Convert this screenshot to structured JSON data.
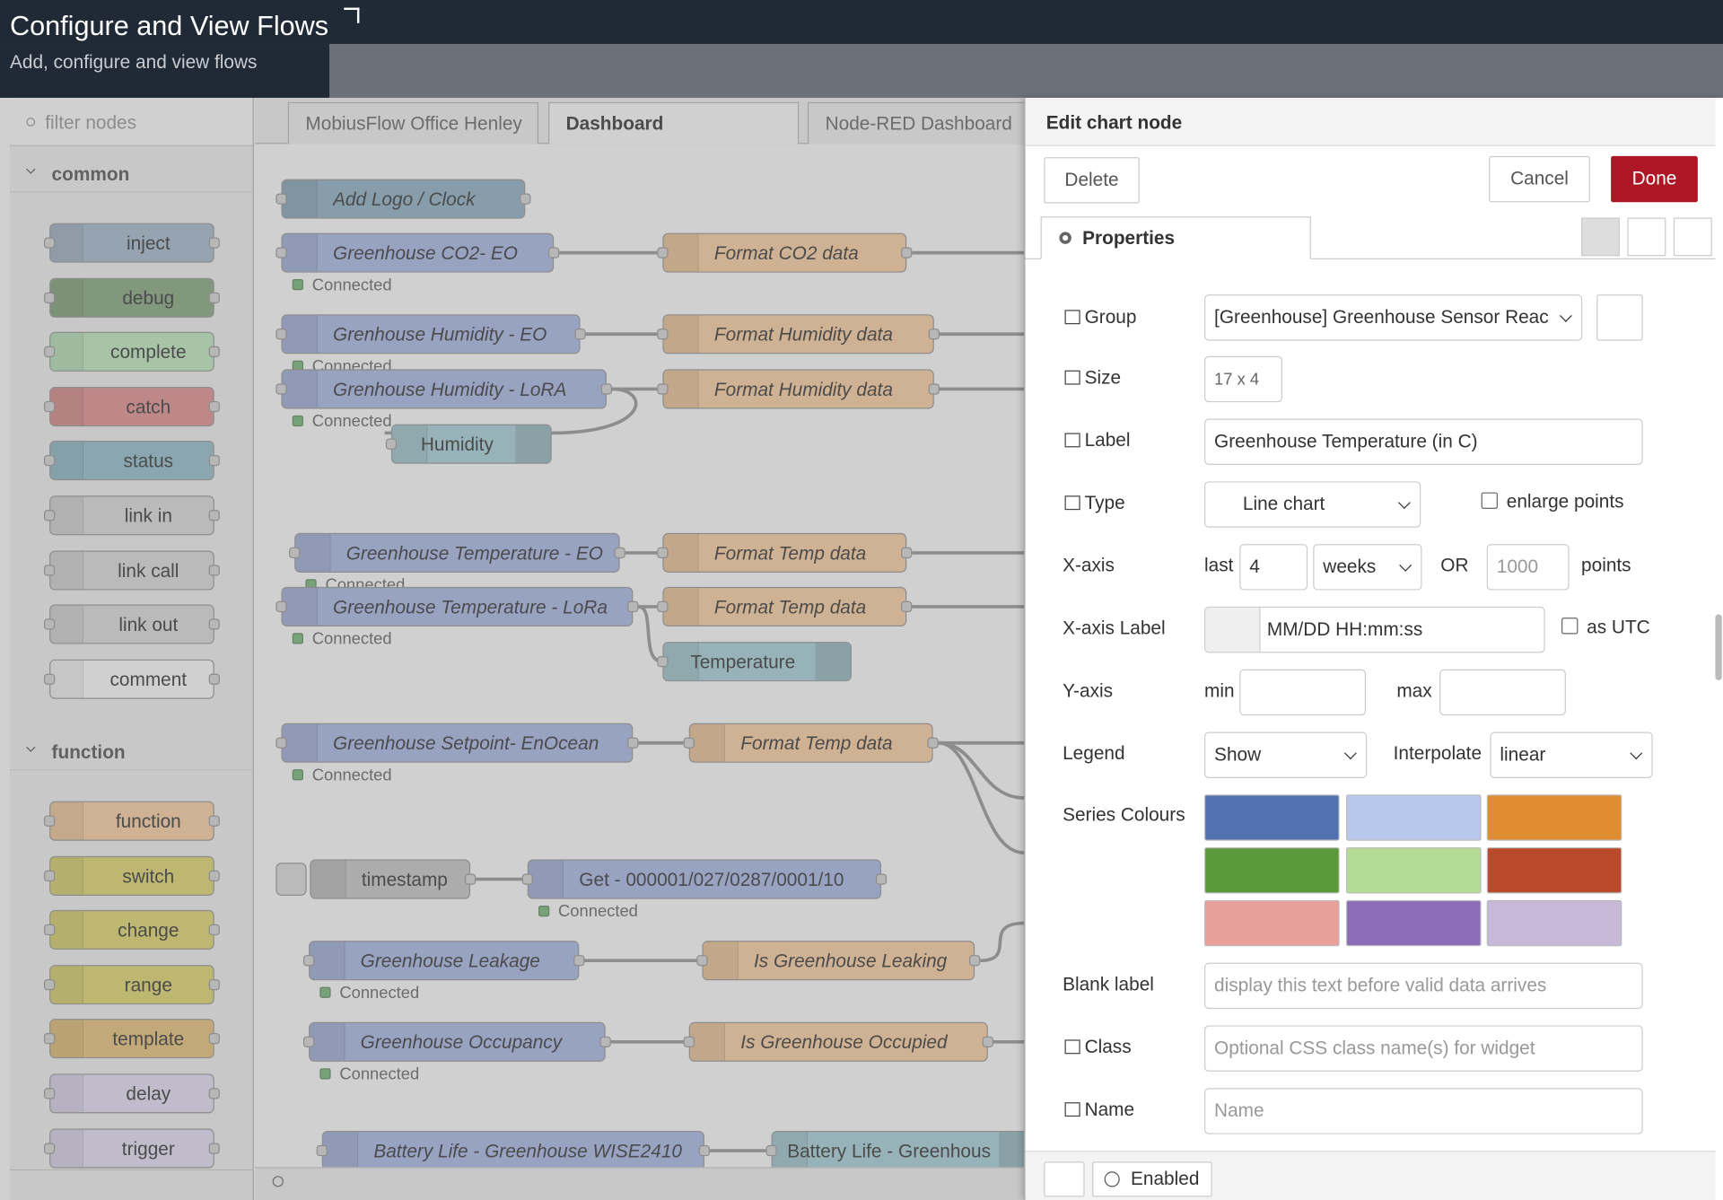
{
  "header": {
    "title": "Configure and View Flows",
    "subtitle": "Add, configure and view flows"
  },
  "palette": {
    "filter": "filter nodes",
    "categories": [
      {
        "name": "common",
        "nodes": [
          {
            "label": "inject",
            "color": "#a6bbcf"
          },
          {
            "label": "debug",
            "color": "#87a980"
          },
          {
            "label": "complete",
            "color": "#c0edc0"
          },
          {
            "label": "catch",
            "color": "#e49191"
          },
          {
            "label": "status",
            "color": "#94c1d0"
          },
          {
            "label": "link in",
            "color": "#dddddd"
          },
          {
            "label": "link call",
            "color": "#dddddd"
          },
          {
            "label": "link out",
            "color": "#dddddd"
          },
          {
            "label": "comment",
            "color": "#ffffff"
          }
        ]
      },
      {
        "name": "function",
        "nodes": [
          {
            "label": "function",
            "color": "#fdd0a2"
          },
          {
            "label": "switch",
            "color": "#e2d96e"
          },
          {
            "label": "change",
            "color": "#e2d96e"
          },
          {
            "label": "range",
            "color": "#e2d96e"
          },
          {
            "label": "template",
            "color": "#ebc47a"
          },
          {
            "label": "delay",
            "color": "#e6e0f8"
          },
          {
            "label": "trigger",
            "color": "#e6e0f8"
          }
        ]
      }
    ]
  },
  "workspace": {
    "tabs": [
      "MobiusFlow Office Henley",
      "Dashboard",
      "Node-RED Dashboard"
    ],
    "nodes": [
      {
        "label": "Add Logo / Clock",
        "color": "#8fb1c6"
      },
      {
        "label": "Greenhouse CO2- EO",
        "color": "#a9b8e8",
        "status": "Connected"
      },
      {
        "label": "Format CO2 data",
        "color": "#fdd0a2"
      },
      {
        "label": "Grenhouse Humidity - EO",
        "color": "#a9b8e8",
        "status": "Connected"
      },
      {
        "label": "Format Humidity data",
        "color": "#fdd0a2"
      },
      {
        "label": "Grenhouse Humidity - LoRA",
        "color": "#a9b8e8",
        "status": "Connected"
      },
      {
        "label": "Format Humidity data",
        "color": "#fdd0a2"
      },
      {
        "label": "Humidity",
        "color": "#a9d2dc"
      },
      {
        "label": "Greenhouse Temperature - EO",
        "color": "#a9b8e8",
        "status": "Connected"
      },
      {
        "label": "Format Temp data",
        "color": "#fdd0a2"
      },
      {
        "label": "Greenhouse Temperature - LoRa",
        "color": "#a9b8e8",
        "status": "Connected"
      },
      {
        "label": "Format Temp data",
        "color": "#fdd0a2"
      },
      {
        "label": "Temperature",
        "color": "#a9d2dc"
      },
      {
        "label": "Greenhouse Setpoint- EnOcean",
        "color": "#a9b8e8",
        "status": "Connected"
      },
      {
        "label": "Format Temp data",
        "color": "#fdd0a2"
      },
      {
        "label": "timestamp",
        "color": "#c8c8c8"
      },
      {
        "label": "Get - 000001/027/0287/0001/10",
        "color": "#a9b8e8",
        "status": "Connected"
      },
      {
        "label": "Greenhouse Leakage",
        "color": "#a9b8e8",
        "status": "Connected"
      },
      {
        "label": "Is Greenhouse Leaking",
        "color": "#fdd0a2"
      },
      {
        "label": "Greenhouse Occupancy",
        "color": "#a9b8e8",
        "status": "Connected"
      },
      {
        "label": "Is Greenhouse Occupied",
        "color": "#fdd0a2"
      },
      {
        "label": "Battery Life - Greenhouse WISE2410",
        "color": "#a9b8e8"
      },
      {
        "label": "Battery Life - Greenhous",
        "color": "#a9d2dc"
      }
    ]
  },
  "editor": {
    "title": "Edit chart node",
    "buttons": {
      "delete": "Delete",
      "cancel": "Cancel",
      "done": "Done"
    },
    "tab": "Properties",
    "fields": {
      "group": {
        "label": "Group",
        "value": "[Greenhouse] Greenhouse Sensor Reac"
      },
      "size": {
        "label": "Size",
        "value": "17 x 4"
      },
      "label": {
        "label": "Label",
        "value": "Greenhouse Temperature (in C)"
      },
      "type": {
        "label": "Type",
        "value": "Line chart",
        "checkbox": "enlarge points"
      },
      "x_axis": {
        "label": "X-axis",
        "last": "last",
        "value": "4",
        "unit": "weeks",
        "or": "OR",
        "points_placeholder": "1000",
        "points": "points"
      },
      "x_axis_label": {
        "label": "X-axis Label",
        "value": "MM/DD HH:mm:ss",
        "checkbox": "as UTC"
      },
      "y_axis": {
        "label": "Y-axis",
        "min": "min",
        "max": "max"
      },
      "legend": {
        "label": "Legend",
        "value": "Show",
        "interpolate_label": "Interpolate",
        "interpolate": "linear"
      },
      "series_colours": {
        "label": "Series Colours",
        "colors": [
          "#5271b0",
          "#b8c7ec",
          "#e08d32",
          "#5a9a3a",
          "#b4dc96",
          "#b94a2b",
          "#e8a09a",
          "#8c6bb8",
          "#c7b8d8"
        ]
      },
      "blank_label": {
        "label": "Blank label",
        "placeholder": "display this text before valid data arrives"
      },
      "class": {
        "label": "Class",
        "placeholder": "Optional CSS class name(s) for widget"
      },
      "name": {
        "label": "Name",
        "placeholder": "Name"
      }
    },
    "footer": {
      "enabled": "Enabled"
    }
  }
}
